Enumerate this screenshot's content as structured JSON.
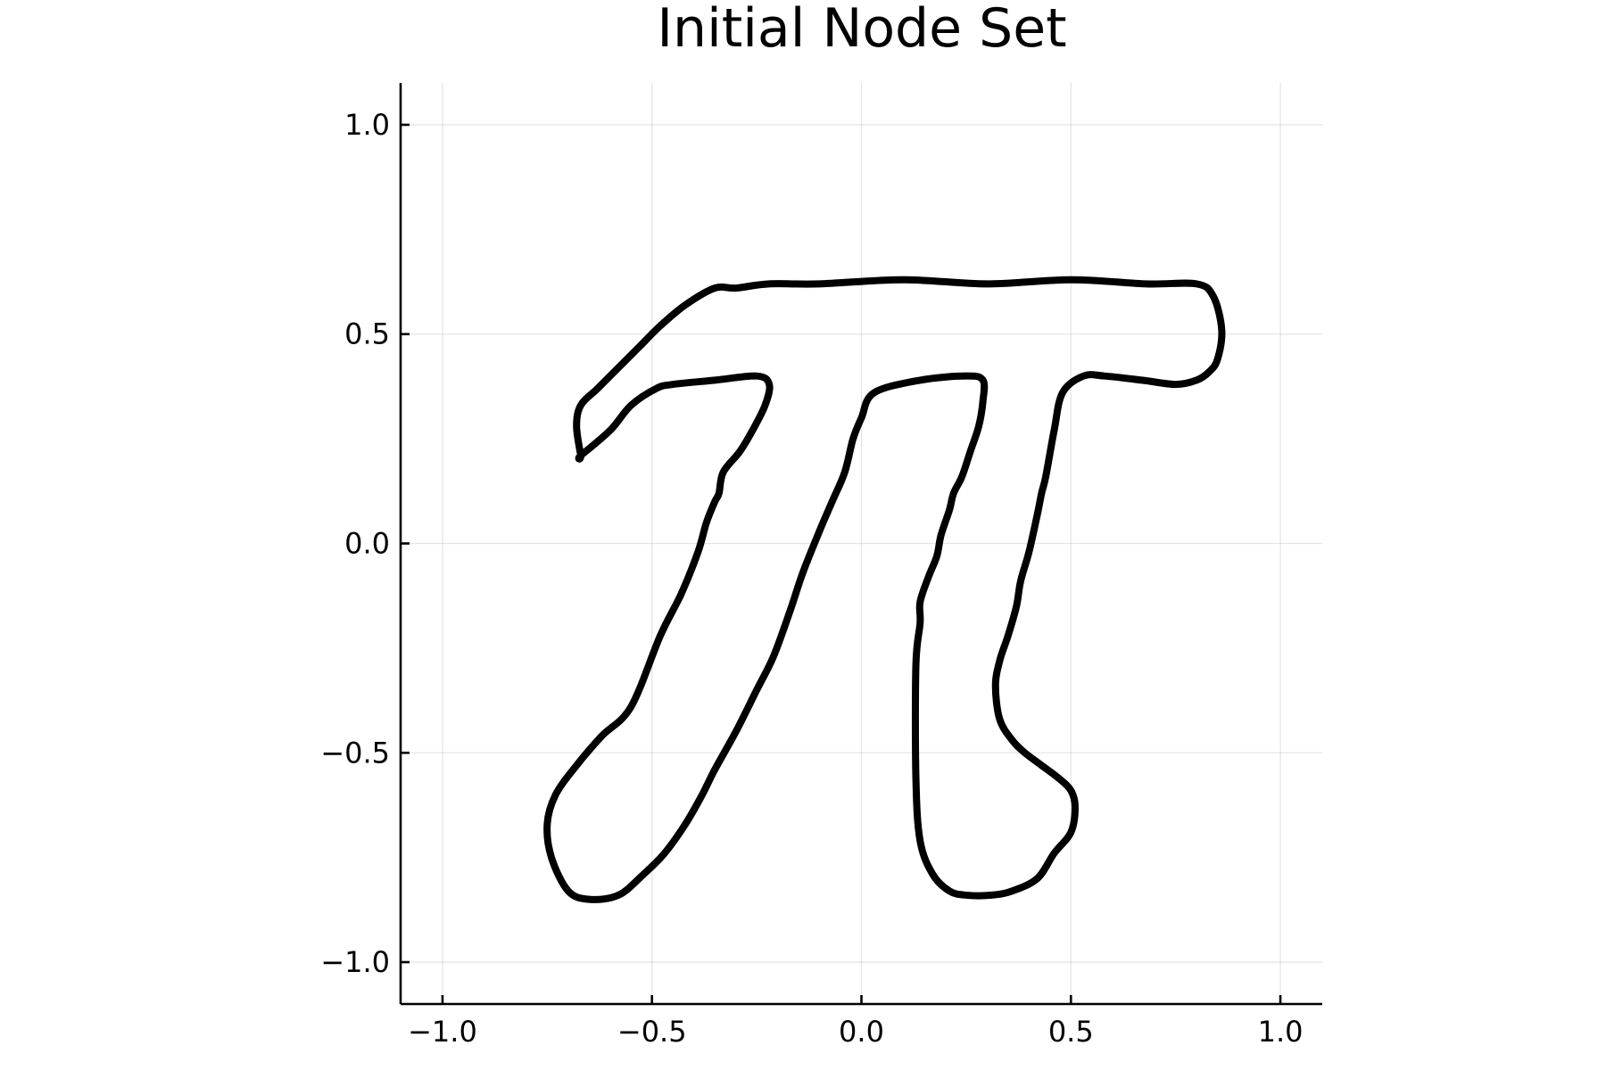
{
  "chart_data": {
    "type": "line",
    "title": "Initial Node Set",
    "xlabel": "",
    "ylabel": "",
    "xlim": [
      -1.1,
      1.1
    ],
    "ylim": [
      -1.1,
      1.1
    ],
    "x_ticks": [
      -1.0,
      -0.5,
      0.0,
      0.5,
      1.0
    ],
    "x_tick_labels": [
      "−1.0",
      "−0.5",
      "0.0",
      "0.5",
      "1.0"
    ],
    "y_ticks": [
      -1.0,
      -0.5,
      0.0,
      0.5,
      1.0
    ],
    "y_tick_labels": [
      "−1.0",
      "−0.5",
      "0.0",
      "0.5",
      "1.0"
    ],
    "grid": true,
    "legend": "none",
    "line_color": "#000000",
    "series": [
      {
        "closed": true,
        "x": [
          -0.67,
          -0.6,
          -0.55,
          -0.49,
          -0.45,
          -0.35,
          -0.25,
          -0.22,
          -0.23,
          -0.26,
          -0.29,
          -0.33,
          -0.34,
          -0.35,
          -0.37,
          -0.39,
          -0.43,
          -0.48,
          -0.55,
          -0.62,
          -0.68,
          -0.73,
          -0.75,
          -0.74,
          -0.7,
          -0.65,
          -0.58,
          -0.52,
          -0.47,
          -0.42,
          -0.38,
          -0.35,
          -0.3,
          -0.25,
          -0.21,
          -0.17,
          -0.14,
          -0.1,
          -0.07,
          -0.04,
          -0.02,
          0.0,
          0.03,
          0.14,
          0.25,
          0.29,
          0.29,
          0.28,
          0.26,
          0.24,
          0.22,
          0.21,
          0.19,
          0.18,
          0.16,
          0.14,
          0.14,
          0.13,
          0.13,
          0.14,
          0.17,
          0.21,
          0.25,
          0.31,
          0.36,
          0.42,
          0.46,
          0.5,
          0.51,
          0.5,
          0.47,
          0.43,
          0.39,
          0.36,
          0.33,
          0.32,
          0.33,
          0.35,
          0.37,
          0.38,
          0.4,
          0.42,
          0.43,
          0.44,
          0.46,
          0.48,
          0.53,
          0.58,
          0.67,
          0.75,
          0.8,
          0.83,
          0.85,
          0.86,
          0.84,
          0.8,
          0.68,
          0.5,
          0.3,
          0.1,
          -0.1,
          -0.22,
          -0.3,
          -0.35,
          -0.42,
          -0.48,
          -0.53,
          -0.58,
          -0.63,
          -0.67,
          -0.68,
          -0.67
        ],
        "y": [
          0.21,
          0.27,
          0.33,
          0.37,
          0.38,
          0.39,
          0.4,
          0.38,
          0.33,
          0.27,
          0.22,
          0.17,
          0.12,
          0.1,
          0.05,
          -0.02,
          -0.12,
          -0.22,
          -0.39,
          -0.46,
          -0.53,
          -0.6,
          -0.67,
          -0.75,
          -0.83,
          -0.85,
          -0.84,
          -0.79,
          -0.74,
          -0.67,
          -0.6,
          -0.54,
          -0.45,
          -0.35,
          -0.27,
          -0.16,
          -0.07,
          0.03,
          0.1,
          0.17,
          0.25,
          0.3,
          0.36,
          0.39,
          0.4,
          0.39,
          0.34,
          0.28,
          0.22,
          0.16,
          0.12,
          0.08,
          0.02,
          -0.03,
          -0.08,
          -0.14,
          -0.19,
          -0.29,
          -0.56,
          -0.71,
          -0.79,
          -0.83,
          -0.84,
          -0.84,
          -0.83,
          -0.8,
          -0.74,
          -0.69,
          -0.63,
          -0.59,
          -0.56,
          -0.53,
          -0.5,
          -0.47,
          -0.42,
          -0.34,
          -0.28,
          -0.22,
          -0.15,
          -0.09,
          -0.02,
          0.07,
          0.12,
          0.16,
          0.27,
          0.36,
          0.4,
          0.4,
          0.39,
          0.38,
          0.39,
          0.41,
          0.44,
          0.51,
          0.59,
          0.62,
          0.62,
          0.63,
          0.62,
          0.63,
          0.62,
          0.62,
          0.61,
          0.61,
          0.57,
          0.52,
          0.47,
          0.42,
          0.37,
          0.33,
          0.28,
          0.21
        ]
      }
    ]
  }
}
